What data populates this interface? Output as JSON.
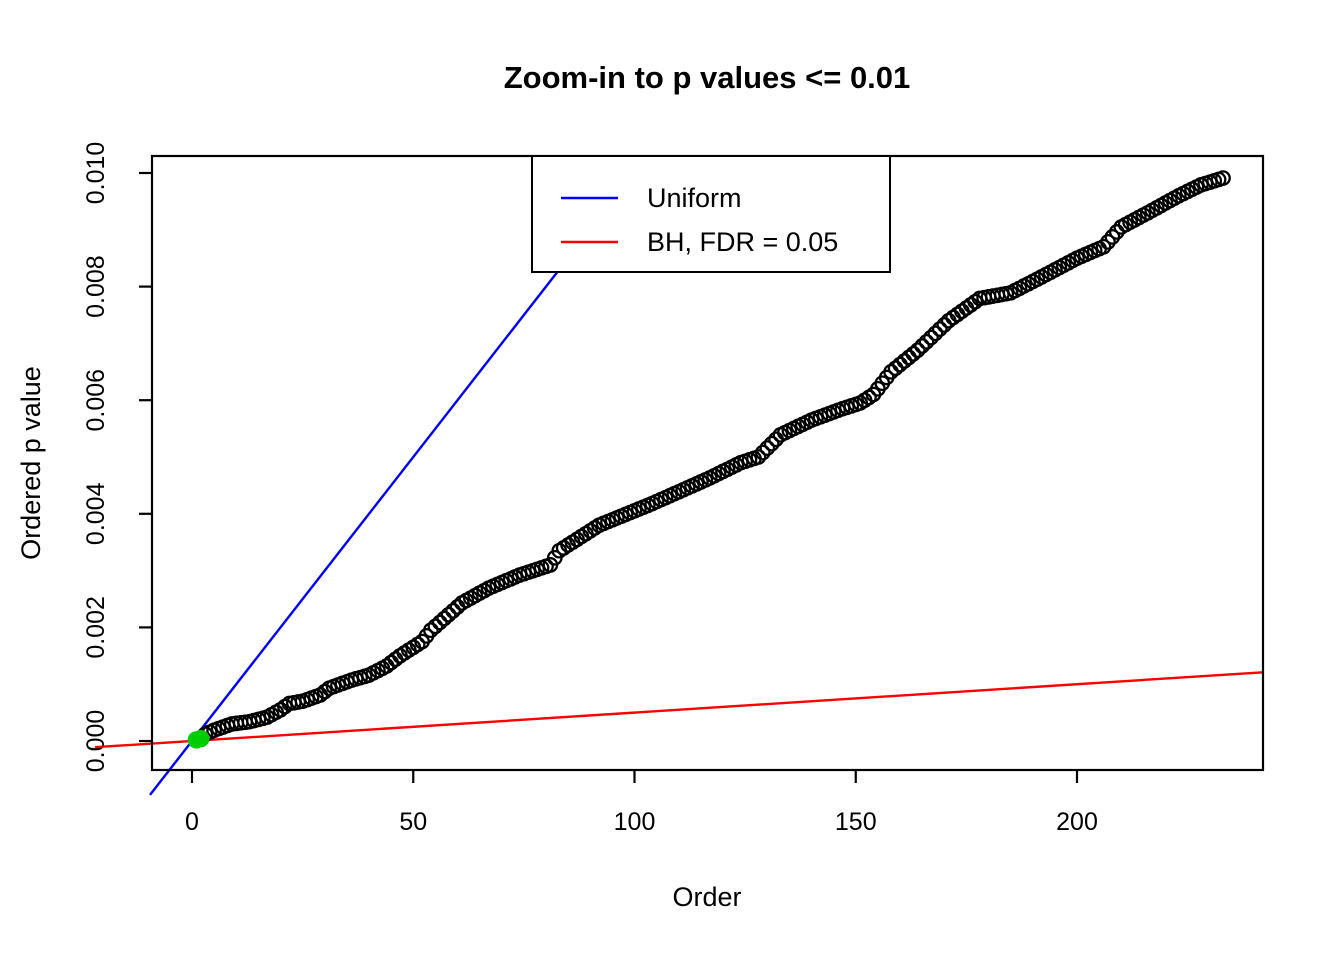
{
  "title": "Zoom-in to p values <= 0.01",
  "axes": {
    "x": {
      "label": "Order",
      "tick_values": [
        0,
        50,
        100,
        150,
        200
      ]
    },
    "y": {
      "label": "Ordered p value",
      "tick_labels": [
        "0.000",
        "0.002",
        "0.004",
        "0.006",
        "0.008",
        "0.010"
      ],
      "tick_values": [
        0,
        0.002,
        0.004,
        0.006,
        0.008,
        0.01
      ]
    }
  },
  "legend": {
    "items": [
      {
        "label": "Uniform",
        "color": "#0000FF"
      },
      {
        "label": "BH, FDR = 0.05",
        "color": "#FF0000"
      }
    ]
  },
  "colors": {
    "foreground": "#000000",
    "background": "#FFFFFF",
    "uniform_line": "#0000FF",
    "bh_line": "#FF0000",
    "significant_point": "#00CD00",
    "point_outline": "#000000"
  },
  "chart_data": {
    "type": "scatter",
    "title": "Zoom-in to p values <= 0.01",
    "xlabel": "Order",
    "ylabel": "Ordered p value",
    "xlim": [
      -9,
      242
    ],
    "ylim": [
      -0.00051,
      0.01051
    ],
    "grid": false,
    "legend_position": "top-center-inside",
    "n_points": 233,
    "marker": "open-circle",
    "point_anchors_order_p": [
      [
        1,
        2e-05
      ],
      [
        2,
        4e-05
      ],
      [
        3,
        0.00012
      ],
      [
        5,
        0.00019
      ],
      [
        9,
        0.0003
      ],
      [
        13,
        0.00034
      ],
      [
        17,
        0.00042
      ],
      [
        20,
        0.00055
      ],
      [
        22,
        0.00066
      ],
      [
        25,
        0.0007
      ],
      [
        29,
        0.00081
      ],
      [
        31,
        0.00093
      ],
      [
        36,
        0.00107
      ],
      [
        40,
        0.00116
      ],
      [
        44,
        0.00132
      ],
      [
        47,
        0.0015
      ],
      [
        49,
        0.0016
      ],
      [
        52,
        0.00175
      ],
      [
        54,
        0.00195
      ],
      [
        61,
        0.00243
      ],
      [
        67,
        0.00269
      ],
      [
        74,
        0.00292
      ],
      [
        81,
        0.0031
      ],
      [
        83,
        0.00335
      ],
      [
        92,
        0.0038
      ],
      [
        104,
        0.00418
      ],
      [
        117,
        0.00463
      ],
      [
        124,
        0.0049
      ],
      [
        128,
        0.005
      ],
      [
        133,
        0.00539
      ],
      [
        140,
        0.00565
      ],
      [
        147,
        0.00585
      ],
      [
        151,
        0.00595
      ],
      [
        154,
        0.0061
      ],
      [
        158,
        0.0065
      ],
      [
        164,
        0.00688
      ],
      [
        171,
        0.0074
      ],
      [
        178,
        0.00779
      ],
      [
        185,
        0.00789
      ],
      [
        192,
        0.00817
      ],
      [
        200,
        0.0085
      ],
      [
        206,
        0.0087
      ],
      [
        210,
        0.00905
      ],
      [
        216,
        0.0093
      ],
      [
        223,
        0.0096
      ],
      [
        228,
        0.00979
      ],
      [
        233,
        0.00991
      ]
    ],
    "green_point_orders": [
      1,
      2
    ],
    "lines": [
      {
        "name": "Uniform",
        "slope_p_per_order": 0.0001,
        "intercept": 0,
        "color": "#0000FF"
      },
      {
        "name": "BH, FDR = 0.05",
        "slope_p_per_order": 5e-06,
        "intercept": 0,
        "color": "#FF0000"
      }
    ]
  }
}
